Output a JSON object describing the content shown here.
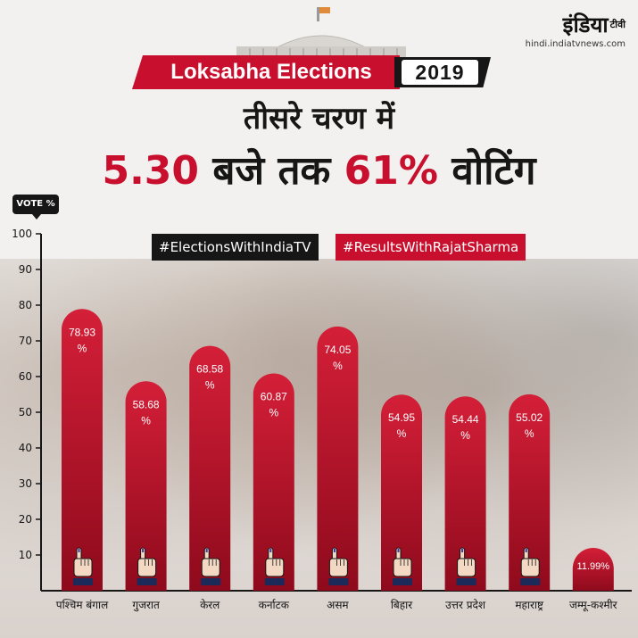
{
  "header": {
    "logo_text": "इंडिया",
    "logo_suffix": "टीवी",
    "logo_url": "hindi.indiatvnews.com",
    "banner_text": "Loksabha Elections",
    "year_text": "2019",
    "headline_line1": "तीसरे चरण में",
    "headline_time": "5.30",
    "headline_mid": "बजे तक",
    "headline_pct": "61%",
    "headline_end": "वोटिंग"
  },
  "hashtags": {
    "india_tv": "#ElectionsWithIndiaTV",
    "rajat_sharma": "#ResultsWithRajatSharma"
  },
  "colors": {
    "accent": "#c8102e",
    "dark": "#161616",
    "bar_top": "#d41f38",
    "bar_bottom": "#8e0a1c"
  },
  "chart_data": {
    "type": "bar",
    "ylabel": "VOTE %",
    "ylim": [
      0,
      100
    ],
    "yticks": [
      10,
      20,
      30,
      40,
      50,
      60,
      70,
      80,
      90,
      100
    ],
    "categories": [
      "पश्चिम बंगाल",
      "गुजरात",
      "केरल",
      "कर्नाटक",
      "असम",
      "बिहार",
      "उत्तर प्रदेश",
      "महाराष्ट्र",
      "जम्मू-कश्मीर"
    ],
    "values": [
      78.93,
      58.68,
      68.58,
      60.87,
      74.05,
      54.95,
      54.44,
      55.02,
      11.99
    ],
    "labels": [
      "78.93",
      "58.68",
      "68.58",
      "60.87",
      "74.05",
      "54.95",
      "54.44",
      "55.02",
      "11.99%"
    ],
    "grid": false
  }
}
